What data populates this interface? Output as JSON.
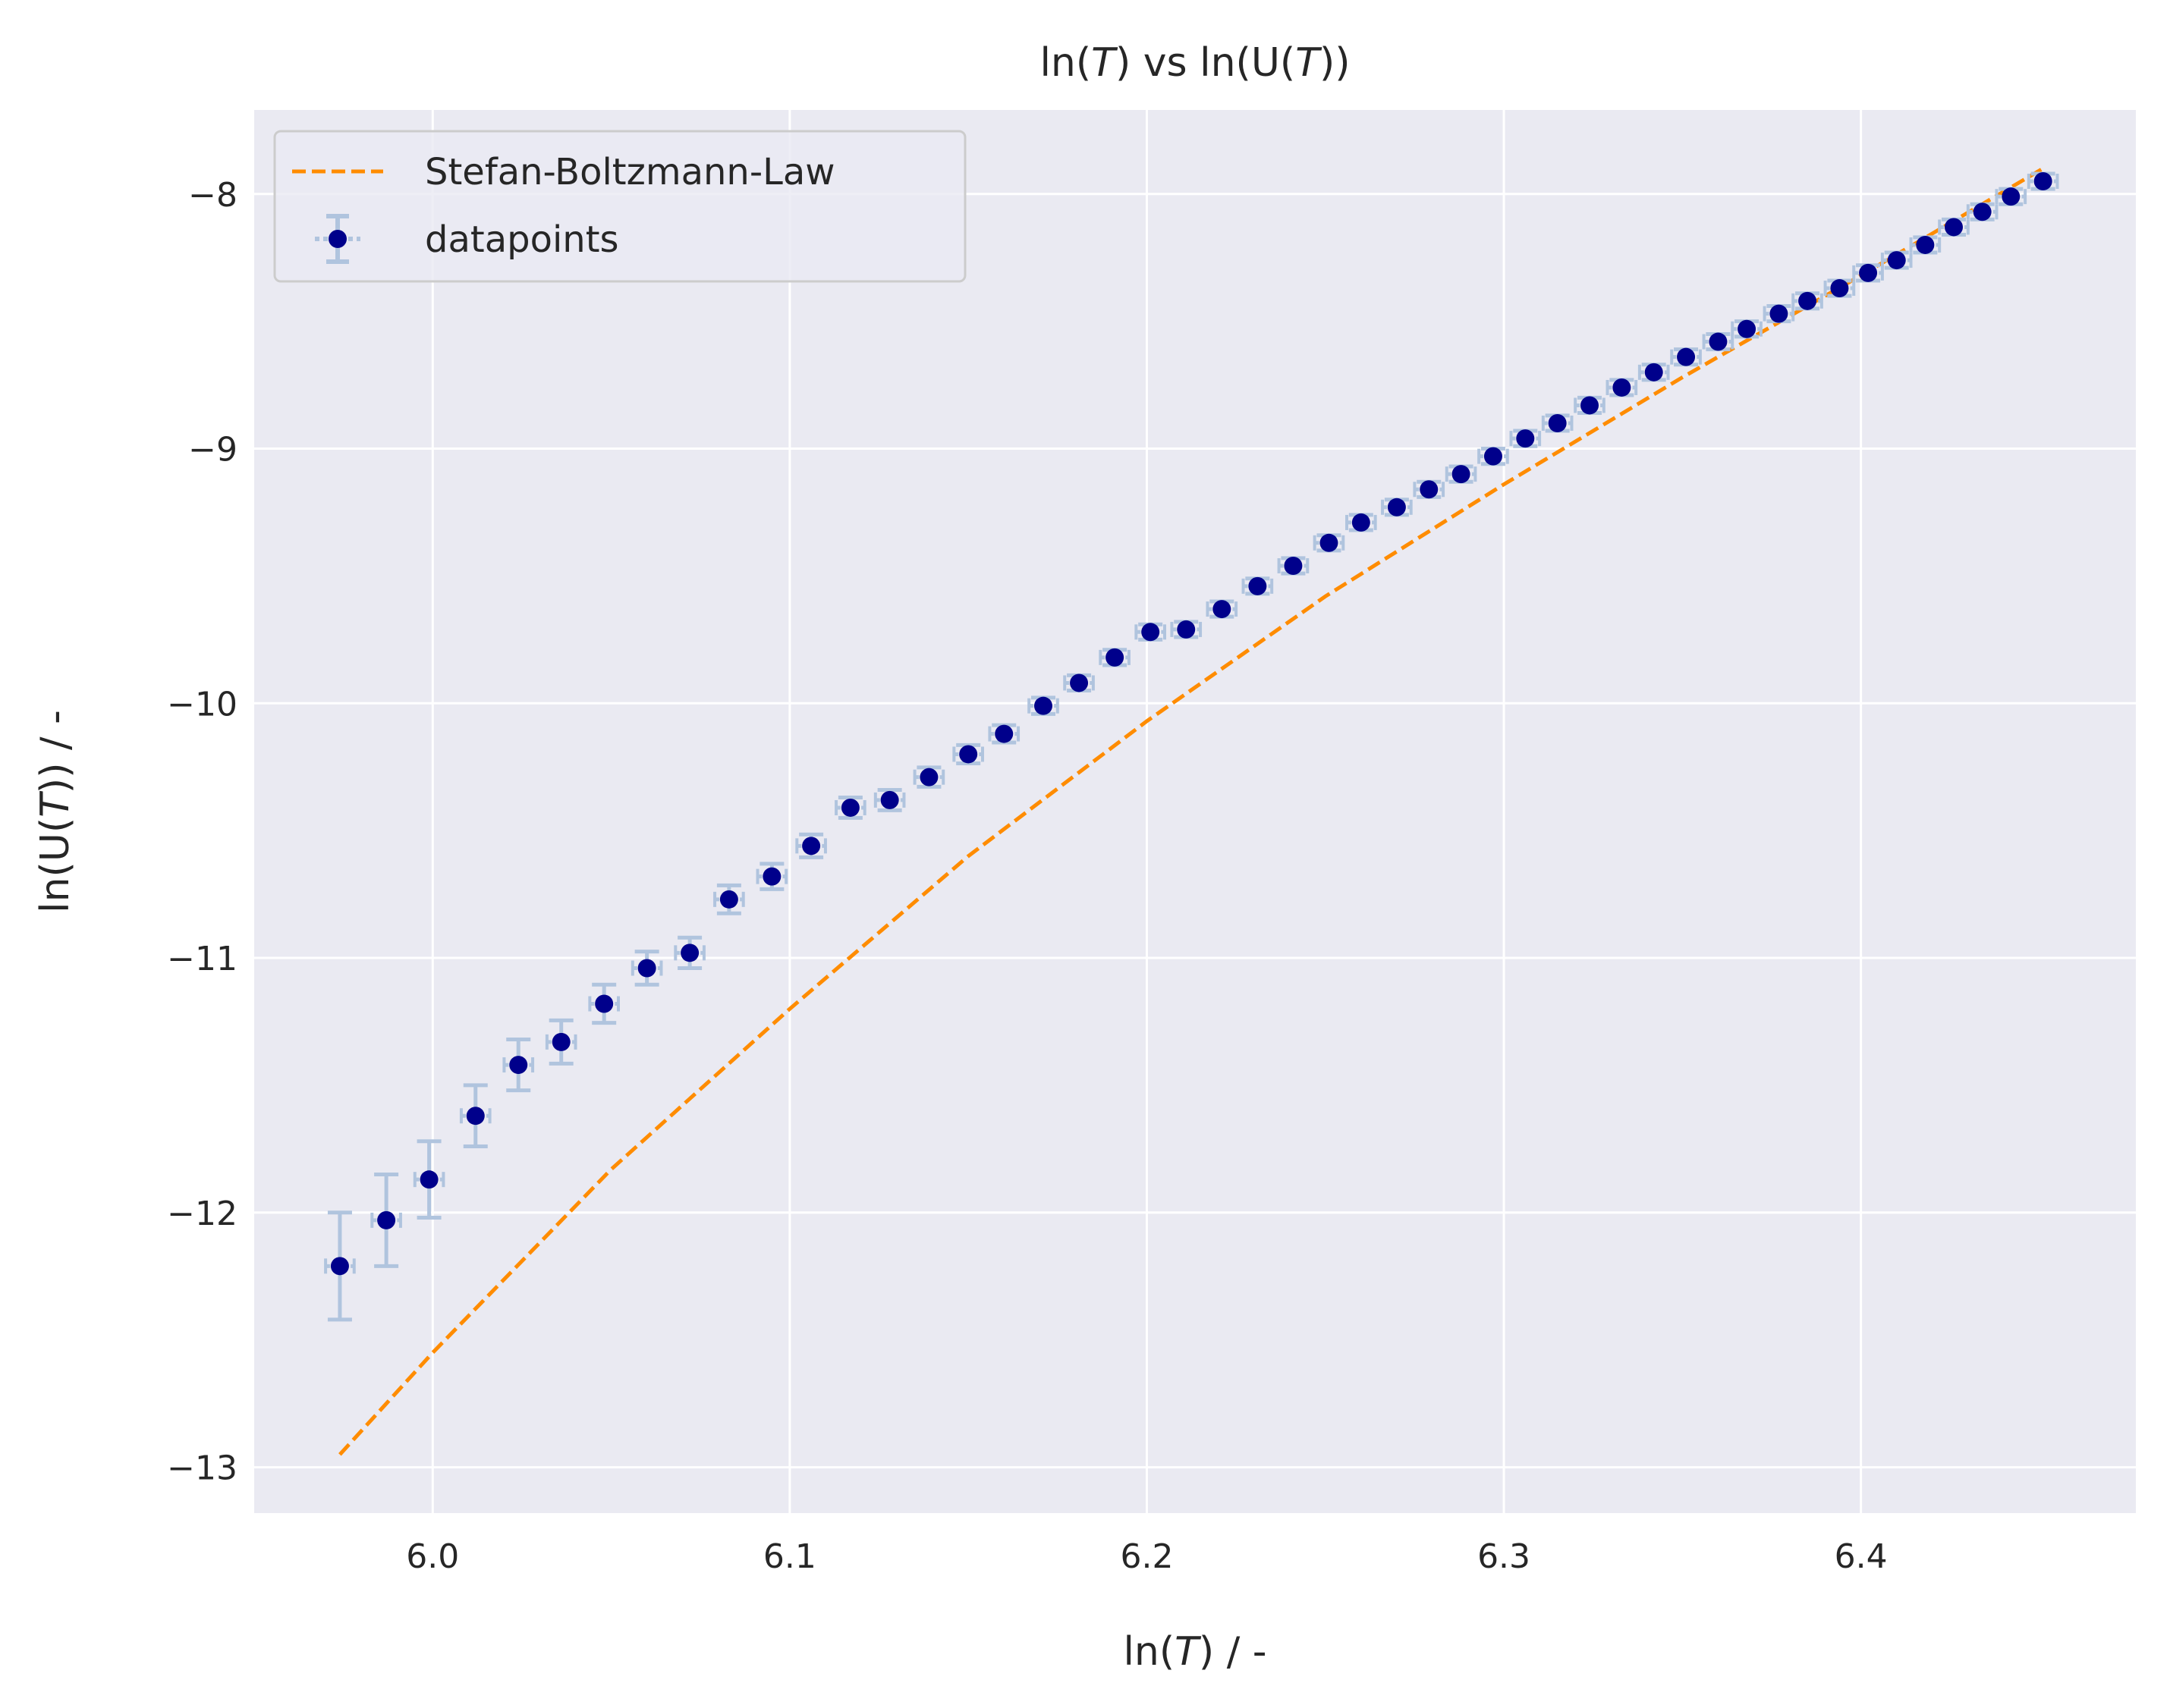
{
  "chart_data": {
    "type": "scatter",
    "title": "ln(T) vs ln(U(T))",
    "xlabel": "ln(T) / -",
    "ylabel": "ln(U(T)) / -",
    "xlim": [
      5.95,
      6.477
    ],
    "ylim": [
      -13.18,
      -7.67
    ],
    "x_ticks": [
      6.0,
      6.1,
      6.2,
      6.3,
      6.4
    ],
    "x_tick_labels": [
      "6.0",
      "6.1",
      "6.2",
      "6.3",
      "6.4"
    ],
    "y_ticks": [
      -8,
      -9,
      -10,
      -11,
      -12,
      -13
    ],
    "y_tick_labels": [
      "−8",
      "−9",
      "−10",
      "−11",
      "−12",
      "−13"
    ],
    "grid": true,
    "background_color": "#eaeaf2",
    "legend": {
      "position": "top-left",
      "entries": [
        "Stefan-Boltzmann-Law",
        "datapoints"
      ]
    },
    "series": [
      {
        "name": "Stefan-Boltzmann-Law",
        "kind": "line",
        "style": "dashed",
        "color": "#ff8c00",
        "x": [
          5.974,
          6.0,
          6.05,
          6.1,
          6.15,
          6.2,
          6.25,
          6.3,
          6.35,
          6.4,
          6.451
        ],
        "y": [
          -12.95,
          -12.55,
          -11.83,
          -11.2,
          -10.6,
          -10.07,
          -9.58,
          -9.14,
          -8.72,
          -8.32,
          -7.9
        ]
      },
      {
        "name": "datapoints",
        "kind": "errorbar",
        "marker_color": "#00008b",
        "errorbar_color": "#b0c4de",
        "x": [
          5.974,
          5.987,
          5.999,
          6.012,
          6.024,
          6.036,
          6.048,
          6.06,
          6.072,
          6.083,
          6.095,
          6.106,
          6.117,
          6.128,
          6.139,
          6.15,
          6.16,
          6.171,
          6.181,
          6.191,
          6.201,
          6.211,
          6.221,
          6.231,
          6.241,
          6.251,
          6.26,
          6.27,
          6.279,
          6.288,
          6.297,
          6.306,
          6.315,
          6.324,
          6.333,
          6.342,
          6.351,
          6.36,
          6.368,
          6.377,
          6.385,
          6.394,
          6.402,
          6.41,
          6.418,
          6.426,
          6.434,
          6.442,
          6.451
        ],
        "y": [
          -12.21,
          -12.03,
          -11.87,
          -11.62,
          -11.42,
          -11.33,
          -11.18,
          -11.04,
          -10.98,
          -10.77,
          -10.68,
          -10.56,
          -10.41,
          -10.38,
          -10.29,
          -10.2,
          -10.12,
          -10.01,
          -9.92,
          -9.82,
          -9.72,
          -9.71,
          -9.63,
          -9.54,
          -9.46,
          -9.37,
          -9.29,
          -9.23,
          -9.16,
          -9.1,
          -9.03,
          -8.96,
          -8.9,
          -8.83,
          -8.76,
          -8.7,
          -8.64,
          -8.58,
          -8.53,
          -8.47,
          -8.42,
          -8.37,
          -8.31,
          -8.26,
          -8.2,
          -8.13,
          -8.07,
          -8.01,
          -7.95
        ],
        "yerr": [
          0.21,
          0.18,
          0.15,
          0.12,
          0.1,
          0.085,
          0.075,
          0.065,
          0.06,
          0.055,
          0.05,
          0.045,
          0.04,
          0.04,
          0.038,
          0.036,
          0.034,
          0.032,
          0.03,
          0.03,
          0.03,
          0.03,
          0.03,
          0.03,
          0.03,
          0.03,
          0.03,
          0.03,
          0.03,
          0.03,
          0.03,
          0.03,
          0.03,
          0.03,
          0.03,
          0.03,
          0.03,
          0.03,
          0.03,
          0.03,
          0.03,
          0.03,
          0.03,
          0.03,
          0.03,
          0.03,
          0.03,
          0.03,
          0.03
        ],
        "xerr": [
          0.004,
          0.004,
          0.004,
          0.004,
          0.004,
          0.004,
          0.004,
          0.004,
          0.004,
          0.004,
          0.004,
          0.004,
          0.004,
          0.004,
          0.004,
          0.004,
          0.004,
          0.004,
          0.004,
          0.004,
          0.004,
          0.004,
          0.004,
          0.004,
          0.004,
          0.004,
          0.004,
          0.004,
          0.004,
          0.004,
          0.004,
          0.004,
          0.004,
          0.004,
          0.004,
          0.004,
          0.004,
          0.004,
          0.004,
          0.004,
          0.004,
          0.004,
          0.004,
          0.004,
          0.004,
          0.004,
          0.004,
          0.004,
          0.004
        ]
      }
    ]
  }
}
